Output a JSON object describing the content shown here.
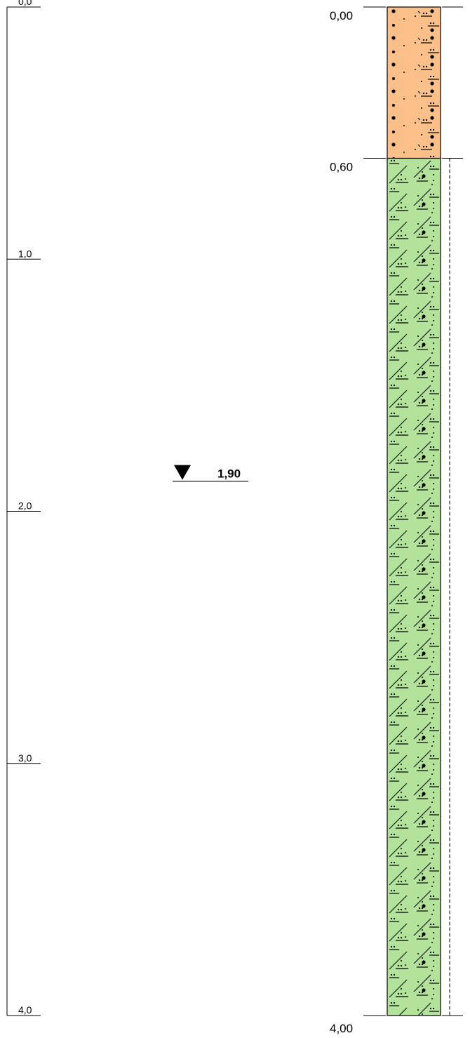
{
  "depth_scale": {
    "unit": "m",
    "ticks": [
      {
        "value": 0,
        "label": "0,0"
      },
      {
        "value": 1,
        "label": "1,0"
      },
      {
        "value": 2,
        "label": "2,0"
      },
      {
        "value": 3,
        "label": "3,0"
      },
      {
        "value": 4,
        "label": "4,0"
      }
    ],
    "range": [
      0,
      4
    ]
  },
  "layers": [
    {
      "top": 0.0,
      "bottom": 0.6,
      "top_label": "0,00",
      "fill_color": "#fbbf8a",
      "pattern": "sand-gravel-silt",
      "sampled": false
    },
    {
      "top": 0.6,
      "bottom": 4.0,
      "top_label": "0,60",
      "fill_color": "#b3e29a",
      "pattern": "clay-silt-sand-gravel",
      "sampled": true
    }
  ],
  "bottom_label": "4,00",
  "groundwater": {
    "depth": 1.9,
    "label": "1,90",
    "icon": "water-level-triangle-icon"
  }
}
